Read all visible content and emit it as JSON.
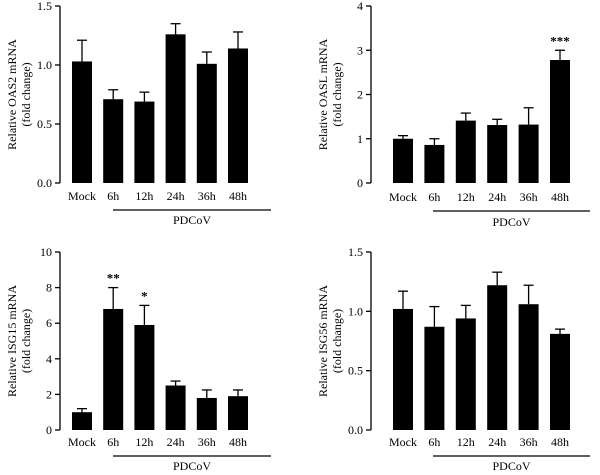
{
  "chart_data": [
    {
      "type": "bar",
      "categories": [
        "Mock",
        "6h",
        "12h",
        "24h",
        "36h",
        "48h"
      ],
      "values": [
        1.03,
        0.71,
        0.69,
        1.26,
        1.01,
        1.14
      ],
      "errors": [
        0.18,
        0.08,
        0.08,
        0.09,
        0.1,
        0.14
      ],
      "significance": [
        "",
        "",
        "",
        "",
        "",
        ""
      ],
      "ylabel_line1": "Relative OAS2 mRNA",
      "ylabel_line2": "(fold change)",
      "ylim": [
        0,
        1.5
      ],
      "yticks": [
        "0.0",
        "0.5",
        "1.0",
        "1.5"
      ],
      "group_label": "PDCoV",
      "color": "#000000"
    },
    {
      "type": "bar",
      "categories": [
        "Mock",
        "6h",
        "12h",
        "24h",
        "36h",
        "48h"
      ],
      "values": [
        1.0,
        0.86,
        1.41,
        1.31,
        1.32,
        2.78
      ],
      "errors": [
        0.07,
        0.14,
        0.17,
        0.13,
        0.38,
        0.22
      ],
      "significance": [
        "",
        "",
        "",
        "",
        "",
        "***"
      ],
      "ylabel_line1": "Relative OASL mRNA",
      "ylabel_line2": "(fold change)",
      "ylim": [
        0,
        4
      ],
      "yticks": [
        "0",
        "1",
        "2",
        "3",
        "4"
      ],
      "group_label": "PDCoV",
      "color": "#000000"
    },
    {
      "type": "bar",
      "categories": [
        "Mock",
        "6h",
        "12h",
        "24h",
        "36h",
        "48h"
      ],
      "values": [
        1.0,
        6.8,
        5.9,
        2.5,
        1.8,
        1.9
      ],
      "errors": [
        0.2,
        1.2,
        1.1,
        0.25,
        0.45,
        0.35
      ],
      "significance": [
        "",
        "**",
        "*",
        "",
        "",
        ""
      ],
      "ylabel_line1": "Relative ISG15 mRNA",
      "ylabel_line2": "(fold change)",
      "ylim": [
        0,
        10
      ],
      "yticks": [
        "0",
        "2",
        "4",
        "6",
        "8",
        "10"
      ],
      "group_label": "PDCoV",
      "color": "#000000"
    },
    {
      "type": "bar",
      "categories": [
        "Mock",
        "6h",
        "12h",
        "24h",
        "36h",
        "48h"
      ],
      "values": [
        1.02,
        0.87,
        0.94,
        1.22,
        1.06,
        0.81
      ],
      "errors": [
        0.15,
        0.17,
        0.11,
        0.11,
        0.16,
        0.04
      ],
      "significance": [
        "",
        "",
        "",
        "",
        "",
        ""
      ],
      "ylabel_line1": "Relative ISG56 mRNA",
      "ylabel_line2": "(fold change)",
      "ylim": [
        0,
        1.5
      ],
      "yticks": [
        "0.0",
        "0.5",
        "1.0",
        "1.5"
      ],
      "group_label": "PDCoV",
      "color": "#000000"
    }
  ]
}
